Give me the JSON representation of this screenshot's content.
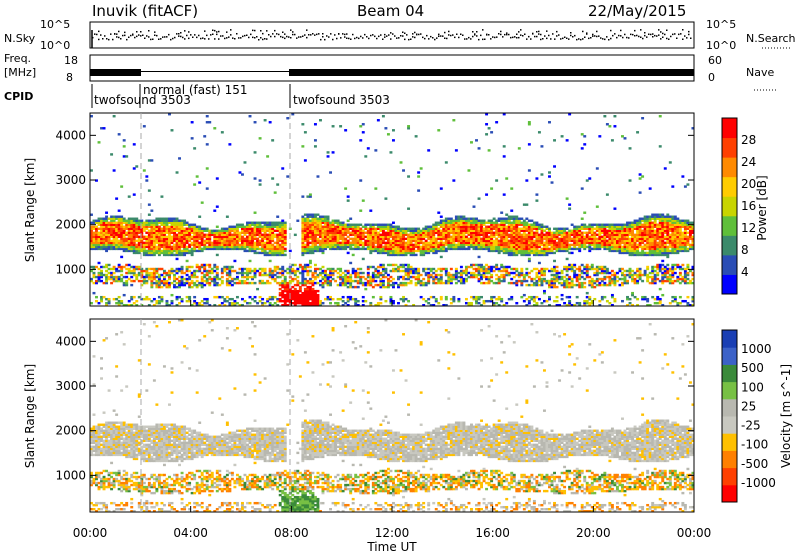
{
  "header": {
    "station": "Inuvik (fitACF)",
    "beam": "Beam 04",
    "date": "22/May/2015"
  },
  "strip_labels": {
    "nsky": "N.Sky",
    "nsearch": "N.Search",
    "freq_line1": "Freq.",
    "freq_line2": "[MHz]",
    "nave": "Nave",
    "cpid": "CPID",
    "noise_left_ticks": [
      "10^5",
      "10^0"
    ],
    "noise_right_ticks": [
      "10^5",
      "10^0"
    ],
    "freq_left_ticks": [
      "18",
      "8"
    ],
    "freq_right_ticks": [
      "60",
      "0"
    ]
  },
  "cpid_segments": [
    {
      "label": "twofsound 3503",
      "start": "00:00",
      "end": "02:00"
    },
    {
      "label": "normal (fast) 151",
      "start": "02:00",
      "end": "08:00"
    },
    {
      "label": "twofsound 3503",
      "start": "08:00",
      "end": "24:00"
    }
  ],
  "colors": {
    "power_scale": [
      "#0000ff",
      "#2a4db5",
      "#3b8a6b",
      "#5fbf3a",
      "#c8d400",
      "#ffcc00",
      "#ff8a00",
      "#ff4000",
      "#ff0000"
    ],
    "velocity_scale": [
      "#1a3fb4",
      "#3c62c8",
      "#3a8a3a",
      "#77c044",
      "#b8b8b0",
      "#c8c8c0",
      "#ffc000",
      "#ff8000",
      "#ff4000",
      "#ff0000"
    ]
  },
  "chart_data": [
    {
      "type": "heatmap",
      "title": "Power",
      "xlabel": "",
      "ylabel": "Slant Range [km]",
      "x_ticks": [
        "00:00",
        "04:00",
        "08:00",
        "12:00",
        "16:00",
        "20:00",
        "00:00"
      ],
      "y_ticks": [
        1000,
        2000,
        3000,
        4000
      ],
      "xlim": [
        0,
        24
      ],
      "ylim": [
        180,
        4500
      ],
      "colorbar": {
        "label": "Power [dB]",
        "ticks": [
          4,
          8,
          12,
          16,
          20,
          24,
          28
        ],
        "range": [
          0,
          30
        ]
      },
      "features": [
        {
          "desc": "main echo band",
          "range_km": [
            1300,
            2200
          ],
          "hours": [
            0,
            24
          ],
          "value_db": 24
        },
        {
          "desc": "lower echo band",
          "range_km": [
            600,
            1100
          ],
          "hours": [
            0,
            24
          ],
          "value_db": 14
        },
        {
          "desc": "near-range burst",
          "range_km": [
            180,
            1000
          ],
          "hours": [
            7.5,
            9.0
          ],
          "value_db": 30
        }
      ]
    },
    {
      "type": "heatmap",
      "title": "Velocity",
      "xlabel": "Time UT",
      "ylabel": "Slant Range [km]",
      "x_ticks": [
        "00:00",
        "04:00",
        "08:00",
        "12:00",
        "16:00",
        "20:00",
        "00:00"
      ],
      "y_ticks": [
        1000,
        2000,
        3000,
        4000
      ],
      "xlim": [
        0,
        24
      ],
      "ylim": [
        180,
        4500
      ],
      "colorbar": {
        "label": "Velocity [m s^-1]",
        "ticks": [
          "1000",
          "500",
          "100",
          "25",
          "-25",
          "-100",
          "-500",
          "-1000"
        ]
      },
      "features": [
        {
          "desc": "ground scatter band",
          "range_km": [
            1300,
            2300
          ],
          "hours": [
            0,
            24
          ],
          "value_ms": 0
        },
        {
          "desc": "lower band receding",
          "range_km": [
            500,
            1100
          ],
          "hours": [
            0,
            24
          ],
          "value_ms": -150
        },
        {
          "desc": "near-range flow",
          "range_km": [
            180,
            800
          ],
          "hours": [
            6,
            9
          ],
          "value_ms": 120
        }
      ]
    }
  ]
}
